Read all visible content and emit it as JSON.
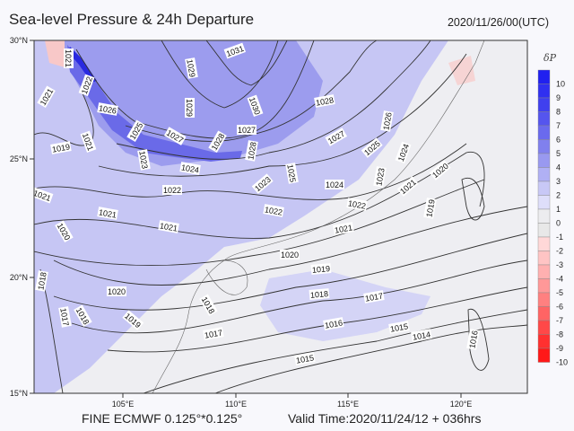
{
  "header": {
    "title": "Sea-level Pressure & 24h Departure",
    "datetime": "2020/11/26/00(UTC)"
  },
  "footer": {
    "model": "FINE ECMWF 0.125°*0.125°",
    "valid_time": "Valid Time:2020/11/24/12 + 036hrs"
  },
  "map": {
    "lon_ticks": [
      "105°E",
      "110°E",
      "115°E",
      "120°E"
    ],
    "lat_ticks": [
      "30°N",
      "25°N",
      "20°N",
      "15°N"
    ],
    "isobar_labels": [
      "1021",
      "1022",
      "1021",
      "1026",
      "1025",
      "1027",
      "1023",
      "1024",
      "1022",
      "1019",
      "1021",
      "1031",
      "1029",
      "1029",
      "1030",
      "1027",
      "1028",
      "1028",
      "1023",
      "1028",
      "1027",
      "1026",
      "1025",
      "1024",
      "1025",
      "1024",
      "1023",
      "1022",
      "1021",
      "1021",
      "1020",
      "1019",
      "1021",
      "1021",
      "1020",
      "1021",
      "1022",
      "1020",
      "1019",
      "1018",
      "1017",
      "1016",
      "1015",
      "1014",
      "1015",
      "1017",
      "1018",
      "1019",
      "1020",
      "1018",
      "1017",
      "1018",
      "1016"
    ]
  },
  "legend": {
    "title": "δP",
    "labels": [
      "10",
      "9",
      "8",
      "7",
      "6",
      "5",
      "4",
      "3",
      "2",
      "1",
      "0",
      "-1",
      "-2",
      "-3",
      "-4",
      "-5",
      "-6",
      "-7",
      "-8",
      "-9",
      "-10"
    ],
    "colors": [
      "#2020f0",
      "#3030f0",
      "#4040ee",
      "#5555ee",
      "#6a6aee",
      "#8080ee",
      "#9999f0",
      "#b0b0f4",
      "#c8c8f6",
      "#dedefa",
      "#ececef",
      "#e8e8e8",
      "#ffd8d8",
      "#ffc4c4",
      "#ffb0b0",
      "#ff9898",
      "#ff8080",
      "#ff6464",
      "#ff4848",
      "#ff3030",
      "#ff1818"
    ]
  }
}
